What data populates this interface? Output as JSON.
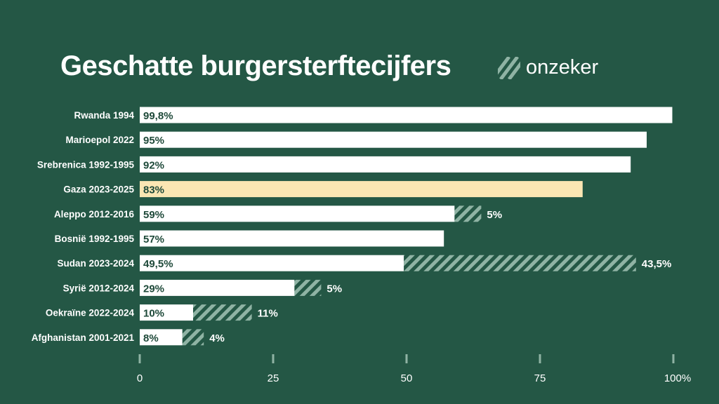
{
  "colors": {
    "background": "#245745",
    "bar": "#ffffff",
    "highlight_bar": "#fbe6b3",
    "uncertain_hatch": "#8fb3a4",
    "bar_text": "#1f4a3a",
    "label_text": "#ffffff",
    "tick_mark": "#8fb3a4"
  },
  "legend": {
    "icon": "diagonal-hatch-icon",
    "label": "onzeker"
  },
  "chart_data": {
    "type": "bar",
    "orientation": "horizontal",
    "stacked": true,
    "title": "Geschatte burgersterftecijfers",
    "xlabel": "",
    "ylabel": "",
    "xlim": [
      0,
      100
    ],
    "grid": false,
    "legend_position": "top-right",
    "x_ticks": [
      {
        "value": 0,
        "label": "0"
      },
      {
        "value": 25,
        "label": "25"
      },
      {
        "value": 50,
        "label": "50"
      },
      {
        "value": 75,
        "label": "75"
      },
      {
        "value": 100,
        "label": "100%"
      }
    ],
    "categories": [
      "Rwanda 1994",
      "Marioepol 2022",
      "Srebrenica 1992-1995",
      "Gaza 2023-2025",
      "Aleppo 2012-2016",
      "Bosnië 1992-1995",
      "Sudan 2023-2024",
      "Syrië 2012-2024",
      "Oekraïne 2022-2024",
      "Afghanistan 2001-2021"
    ],
    "highlight_category": "Gaza 2023-2025",
    "series": [
      {
        "name": "",
        "values": [
          99.8,
          95,
          92,
          83,
          59,
          57,
          49.5,
          29,
          10,
          8
        ],
        "labels": [
          "99,8%",
          "95%",
          "92%",
          "83%",
          "59%",
          "57%",
          "49,5%",
          "29%",
          "10%",
          "8%"
        ]
      },
      {
        "name": "onzeker",
        "values": [
          0,
          0,
          0,
          0,
          5,
          0,
          43.5,
          5,
          11,
          4
        ],
        "labels": [
          "",
          "",
          "",
          "",
          "5%",
          "",
          "43,5%",
          "5%",
          "11%",
          "4%"
        ]
      }
    ]
  }
}
